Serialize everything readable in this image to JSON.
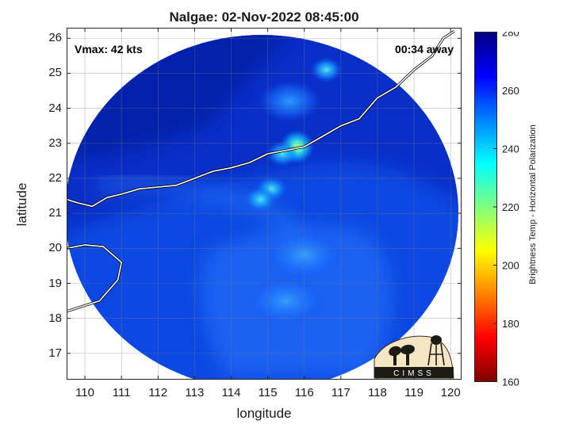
{
  "title": "Nalgae: 02-Nov-2022 08:45:00",
  "vmax_text": "Vmax: 42 kts",
  "time_away_text": "00:34 away",
  "xlabel": "longitude",
  "ylabel": "latitude",
  "colorbar_label": "Brightness Temp - Horizontal Polarization",
  "logo_text": "CIMSS",
  "chart_data": {
    "type": "heatmap",
    "x_ticks": [
      110,
      111,
      112,
      113,
      114,
      115,
      116,
      117,
      118,
      119,
      120
    ],
    "y_ticks": [
      17,
      18,
      19,
      20,
      21,
      22,
      23,
      24,
      25,
      26
    ],
    "xlim": [
      109.5,
      120.3
    ],
    "ylim": [
      16.25,
      26.3
    ],
    "grid": true,
    "colorbar": {
      "min": 160,
      "max": 280,
      "ticks": [
        160,
        180,
        200,
        220,
        240,
        260,
        280
      ],
      "colors": [
        "#800000",
        "#ff0000",
        "#ff8000",
        "#ffff00",
        "#80ff80",
        "#00ffff",
        "#0080ff",
        "#0000ff",
        "#000080"
      ]
    },
    "swath": {
      "center_lon": 115.0,
      "center_lat": 21.1,
      "background_temp": 270
    },
    "features": [
      {
        "label": "convective core",
        "lon": 115.8,
        "lat": 22.9,
        "temp": 238
      },
      {
        "label": "convection",
        "lon": 115.4,
        "lat": 22.7,
        "temp": 245
      },
      {
        "label": "convection",
        "lon": 115.1,
        "lat": 21.7,
        "temp": 242
      },
      {
        "label": "convection",
        "lon": 114.8,
        "lat": 21.4,
        "temp": 244
      },
      {
        "label": "rainband",
        "lon": 116.6,
        "lat": 25.1,
        "temp": 244
      },
      {
        "label": "rainband",
        "lon": 115.6,
        "lat": 24.2,
        "temp": 250
      },
      {
        "label": "rainband",
        "lon": 115.5,
        "lat": 18.5,
        "temp": 255
      },
      {
        "label": "rainband",
        "lon": 116.0,
        "lat": 19.8,
        "temp": 256
      }
    ],
    "coastlines": [
      [
        [
          109.5,
          21.4
        ],
        [
          109.8,
          21.3
        ],
        [
          110.2,
          21.2
        ],
        [
          110.6,
          21.45
        ],
        [
          111.0,
          21.55
        ],
        [
          111.5,
          21.7
        ],
        [
          112.0,
          21.75
        ],
        [
          112.5,
          21.8
        ],
        [
          113.0,
          22.0
        ],
        [
          113.5,
          22.2
        ],
        [
          114.0,
          22.3
        ],
        [
          114.5,
          22.45
        ],
        [
          115.0,
          22.7
        ],
        [
          115.5,
          22.8
        ],
        [
          116.0,
          22.9
        ],
        [
          116.5,
          23.2
        ],
        [
          117.0,
          23.5
        ],
        [
          117.5,
          23.7
        ],
        [
          118.0,
          24.3
        ],
        [
          118.5,
          24.6
        ],
        [
          119.0,
          25.1
        ],
        [
          119.5,
          25.5
        ],
        [
          119.8,
          26.0
        ],
        [
          120.1,
          26.2
        ]
      ],
      [
        [
          109.5,
          20.0
        ],
        [
          110.0,
          20.1
        ],
        [
          110.5,
          20.05
        ],
        [
          111.0,
          19.6
        ],
        [
          110.9,
          19.1
        ],
        [
          110.4,
          18.5
        ],
        [
          109.8,
          18.3
        ],
        [
          109.5,
          18.2
        ]
      ]
    ]
  }
}
